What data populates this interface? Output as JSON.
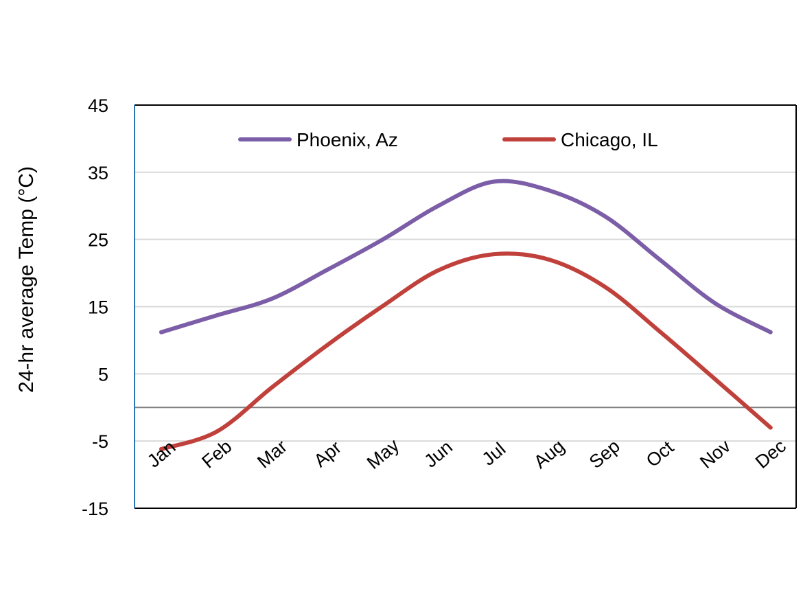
{
  "chart_data": {
    "type": "line",
    "title": "",
    "xlabel": "",
    "ylabel": "24-hr average Temp (°C)",
    "categories": [
      "Jan",
      "Feb",
      "Mar",
      "Apr",
      "May",
      "Jun",
      "Jul",
      "Aug",
      "Sep",
      "Oct",
      "Nov",
      "Dec"
    ],
    "ylim": [
      -15,
      45
    ],
    "yticks": [
      -15,
      -5,
      5,
      15,
      25,
      35,
      45
    ],
    "grid": true,
    "legend": "top",
    "series": [
      {
        "name": "Phoenix, Az",
        "color": "#7b5ea7",
        "values": [
          11.2,
          13.7,
          16.2,
          20.5,
          25.0,
          30.0,
          33.6,
          32.3,
          28.5,
          22.0,
          15.5,
          11.2
        ]
      },
      {
        "name": "Chicago, IL",
        "color": "#c0413b",
        "values": [
          -6.2,
          -3.6,
          3.0,
          9.3,
          15.1,
          20.4,
          22.8,
          22.0,
          18.0,
          11.3,
          4.2,
          -3.0
        ]
      }
    ]
  }
}
